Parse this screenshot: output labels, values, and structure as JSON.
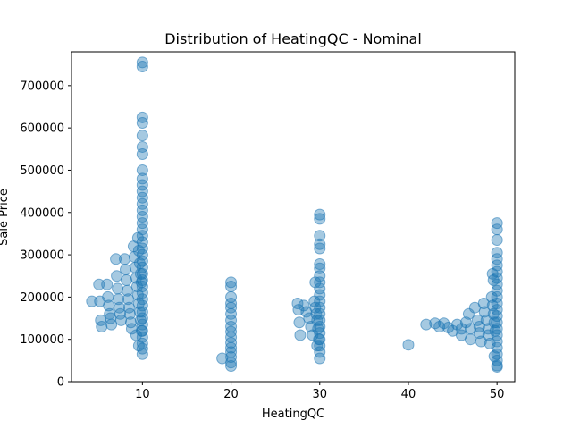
{
  "chart_data": {
    "type": "scatter",
    "title": "Distribution of HeatingQC - Nominal",
    "xlabel": "HeatingQC",
    "ylabel": "Sale Price",
    "xlim": [
      2,
      52
    ],
    "ylim": [
      0,
      780000
    ],
    "xticks": [
      10,
      20,
      30,
      40,
      50
    ],
    "yticks": [
      0,
      100000,
      200000,
      300000,
      400000,
      500000,
      600000,
      700000
    ],
    "xtick_labels": [
      "10",
      "20",
      "30",
      "40",
      "50"
    ],
    "ytick_labels": [
      "0",
      "100000",
      "200000",
      "300000",
      "400000",
      "500000",
      "600000",
      "700000"
    ],
    "grid": false,
    "legend": "none",
    "color": "#1f77b4",
    "alpha": 0.4,
    "points": [
      [
        4.3,
        190000
      ],
      [
        5.1,
        230000
      ],
      [
        5.2,
        190000
      ],
      [
        5.3,
        145000
      ],
      [
        5.4,
        130000
      ],
      [
        6.0,
        230000
      ],
      [
        6.1,
        200000
      ],
      [
        6.2,
        180000
      ],
      [
        6.3,
        160000
      ],
      [
        6.4,
        150000
      ],
      [
        6.5,
        135000
      ],
      [
        7.0,
        290000
      ],
      [
        7.1,
        250000
      ],
      [
        7.2,
        220000
      ],
      [
        7.3,
        195000
      ],
      [
        7.4,
        175000
      ],
      [
        7.5,
        160000
      ],
      [
        7.6,
        145000
      ],
      [
        8.0,
        290000
      ],
      [
        8.1,
        265000
      ],
      [
        8.2,
        240000
      ],
      [
        8.3,
        215000
      ],
      [
        8.4,
        195000
      ],
      [
        8.5,
        175000
      ],
      [
        8.6,
        160000
      ],
      [
        8.7,
        140000
      ],
      [
        8.8,
        125000
      ],
      [
        9.0,
        320000
      ],
      [
        9.1,
        295000
      ],
      [
        9.2,
        270000
      ],
      [
        9.3,
        245000
      ],
      [
        9.4,
        225000
      ],
      [
        9.5,
        205000
      ],
      [
        9.6,
        185000
      ],
      [
        9.7,
        165000
      ],
      [
        9.8,
        145000
      ],
      [
        9.9,
        120000
      ],
      [
        9.5,
        340000
      ],
      [
        9.6,
        310000
      ],
      [
        9.7,
        280000
      ],
      [
        9.8,
        255000
      ],
      [
        9.9,
        235000
      ],
      [
        9.3,
        110000
      ],
      [
        9.6,
        85000
      ],
      [
        10,
        755000
      ],
      [
        10,
        745000
      ],
      [
        10,
        625000
      ],
      [
        10,
        612000
      ],
      [
        10,
        582000
      ],
      [
        10,
        555000
      ],
      [
        10,
        538000
      ],
      [
        10,
        500000
      ],
      [
        10,
        480000
      ],
      [
        10,
        465000
      ],
      [
        10,
        450000
      ],
      [
        10,
        435000
      ],
      [
        10,
        420000
      ],
      [
        10,
        405000
      ],
      [
        10,
        390000
      ],
      [
        10,
        375000
      ],
      [
        10,
        360000
      ],
      [
        10,
        345000
      ],
      [
        10,
        330000
      ],
      [
        10,
        315000
      ],
      [
        10,
        300000
      ],
      [
        10,
        285000
      ],
      [
        10,
        270000
      ],
      [
        10,
        255000
      ],
      [
        10,
        240000
      ],
      [
        10,
        225000
      ],
      [
        10,
        210000
      ],
      [
        10,
        195000
      ],
      [
        10,
        180000
      ],
      [
        10,
        165000
      ],
      [
        10,
        150000
      ],
      [
        10,
        135000
      ],
      [
        10,
        120000
      ],
      [
        10,
        105000
      ],
      [
        10,
        90000
      ],
      [
        10,
        78000
      ],
      [
        10,
        65000
      ],
      [
        20,
        235000
      ],
      [
        20,
        225000
      ],
      [
        20,
        200000
      ],
      [
        20,
        185000
      ],
      [
        20,
        175000
      ],
      [
        20,
        160000
      ],
      [
        20,
        145000
      ],
      [
        20,
        130000
      ],
      [
        20,
        118000
      ],
      [
        20,
        105000
      ],
      [
        20,
        92000
      ],
      [
        20,
        80000
      ],
      [
        20,
        70000
      ],
      [
        20,
        58000
      ],
      [
        20,
        45000
      ],
      [
        20,
        37000
      ],
      [
        19.0,
        55000
      ],
      [
        27.5,
        185000
      ],
      [
        27.6,
        170000
      ],
      [
        27.7,
        140000
      ],
      [
        27.8,
        110000
      ],
      [
        28.2,
        180000
      ],
      [
        28.5,
        165000
      ],
      [
        28.8,
        150000
      ],
      [
        29.0,
        130000
      ],
      [
        29.2,
        110000
      ],
      [
        29.4,
        190000
      ],
      [
        29.5,
        175000
      ],
      [
        29.6,
        160000
      ],
      [
        29.7,
        145000
      ],
      [
        29.8,
        125000
      ],
      [
        29.9,
        100000
      ],
      [
        29.5,
        235000
      ],
      [
        29.7,
        85000
      ],
      [
        30,
        395000
      ],
      [
        30,
        385000
      ],
      [
        30,
        345000
      ],
      [
        30,
        325000
      ],
      [
        30,
        315000
      ],
      [
        30,
        278000
      ],
      [
        30,
        268000
      ],
      [
        30,
        250000
      ],
      [
        30,
        235000
      ],
      [
        30,
        220000
      ],
      [
        30,
        205000
      ],
      [
        30,
        190000
      ],
      [
        30,
        175000
      ],
      [
        30,
        160000
      ],
      [
        30,
        145000
      ],
      [
        30,
        130000
      ],
      [
        30,
        115000
      ],
      [
        30,
        100000
      ],
      [
        30,
        85000
      ],
      [
        30,
        70000
      ],
      [
        30,
        55000
      ],
      [
        40,
        87000
      ],
      [
        42.0,
        135000
      ],
      [
        43.0,
        138000
      ],
      [
        43.5,
        130000
      ],
      [
        44.0,
        138000
      ],
      [
        44.5,
        128000
      ],
      [
        45.0,
        120000
      ],
      [
        45.5,
        135000
      ],
      [
        46.0,
        125000
      ],
      [
        46.0,
        110000
      ],
      [
        46.5,
        140000
      ],
      [
        46.8,
        160000
      ],
      [
        47.0,
        125000
      ],
      [
        47.0,
        100000
      ],
      [
        47.5,
        175000
      ],
      [
        47.8,
        145000
      ],
      [
        48.0,
        130000
      ],
      [
        48.0,
        115000
      ],
      [
        48.2,
        95000
      ],
      [
        48.5,
        185000
      ],
      [
        48.6,
        165000
      ],
      [
        48.8,
        145000
      ],
      [
        49.0,
        125000
      ],
      [
        49.0,
        110000
      ],
      [
        49.2,
        90000
      ],
      [
        49.4,
        200000
      ],
      [
        49.5,
        180000
      ],
      [
        49.6,
        160000
      ],
      [
        49.7,
        140000
      ],
      [
        49.8,
        120000
      ],
      [
        49.5,
        255000
      ],
      [
        49.6,
        240000
      ],
      [
        49.7,
        60000
      ],
      [
        50,
        375000
      ],
      [
        50,
        360000
      ],
      [
        50,
        335000
      ],
      [
        50,
        305000
      ],
      [
        50,
        290000
      ],
      [
        50,
        275000
      ],
      [
        50,
        260000
      ],
      [
        50,
        245000
      ],
      [
        50,
        230000
      ],
      [
        50,
        215000
      ],
      [
        50,
        200000
      ],
      [
        50,
        185000
      ],
      [
        50,
        170000
      ],
      [
        50,
        155000
      ],
      [
        50,
        140000
      ],
      [
        50,
        125000
      ],
      [
        50,
        110000
      ],
      [
        50,
        95000
      ],
      [
        50,
        80000
      ],
      [
        50,
        65000
      ],
      [
        50,
        50000
      ],
      [
        50,
        38000
      ],
      [
        50,
        35000
      ]
    ]
  }
}
